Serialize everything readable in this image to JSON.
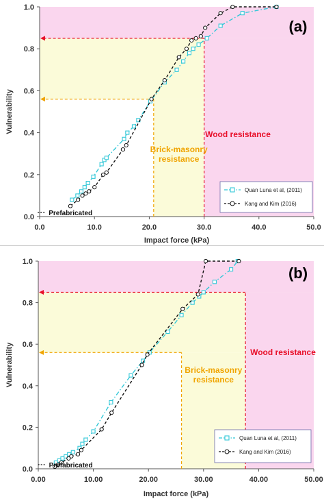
{
  "panels": [
    {
      "label": "(a)",
      "chart_data": {
        "type": "line",
        "xlabel": "Impact force (kPa)",
        "ylabel": "Vulnerability",
        "xlim": [
          0,
          50
        ],
        "ylim": [
          0,
          1
        ],
        "x_ticks": [
          "0.0",
          "10.0",
          "20.0",
          "30.0",
          "40.0",
          "50.0"
        ],
        "y_ticks": [
          "0.0",
          "0.2",
          "0.4",
          "0.6",
          "0.8",
          "1.0"
        ],
        "grid": false,
        "legend_position": "bottom-right",
        "regions": [
          {
            "label": "Brick-masonry resistance",
            "x_from": 0,
            "x_to": 20.8,
            "y_level": 0.56,
            "color": "#fbfbd9",
            "text_color": "#f0a400"
          },
          {
            "label": "Wood resistance",
            "x_from": 0,
            "x_to": 30.0,
            "y_level": 0.85,
            "color": "#fad6ee",
            "text_color": "#e8102a"
          }
        ],
        "annotations": [
          {
            "text": "Prefabricated",
            "x": 0.9,
            "y": 0.02
          }
        ],
        "series": [
          {
            "name": "Quan Luna et al, (2011)",
            "color": "#33c8d8",
            "line_style": "dash-dot",
            "marker": "square",
            "x": [
              5.9,
              6.9,
              7.6,
              8.2,
              8.8,
              9.8,
              11.3,
              11.8,
              12.2,
              15.4,
              16.0,
              17.2,
              18.0,
              20.2,
              22.8,
              25.0,
              26.2,
              27.3,
              28.0,
              29.0,
              30.5,
              33.0,
              37.0,
              43.2
            ],
            "y": [
              0.08,
              0.1,
              0.12,
              0.14,
              0.16,
              0.19,
              0.25,
              0.27,
              0.28,
              0.37,
              0.4,
              0.43,
              0.46,
              0.55,
              0.64,
              0.7,
              0.74,
              0.78,
              0.8,
              0.82,
              0.85,
              0.91,
              0.97,
              1.0
            ]
          },
          {
            "name": "Kang and Kim (2016)",
            "color": "#111111",
            "line_style": "dashed",
            "marker": "circle",
            "x": [
              5.6,
              7.0,
              7.8,
              8.4,
              9.0,
              10.0,
              11.6,
              12.2,
              15.2,
              15.8,
              20.4,
              22.8,
              25.4,
              26.8,
              27.7,
              28.5,
              29.4,
              30.2,
              33.0,
              35.2,
              43.2
            ],
            "y": [
              0.05,
              0.08,
              0.1,
              0.11,
              0.12,
              0.14,
              0.2,
              0.21,
              0.32,
              0.34,
              0.56,
              0.65,
              0.76,
              0.8,
              0.84,
              0.85,
              0.86,
              0.9,
              0.97,
              1.0,
              1.0
            ]
          }
        ]
      }
    },
    {
      "label": "(b)",
      "chart_data": {
        "type": "line",
        "xlabel": "Impact force (kPa)",
        "ylabel": "Vulnerability",
        "xlim": [
          0,
          50
        ],
        "ylim": [
          0,
          1
        ],
        "x_ticks": [
          "0.00",
          "10.00",
          "20.00",
          "30.00",
          "40.00",
          "50.00"
        ],
        "y_ticks": [
          "0.0",
          "0.2",
          "0.4",
          "0.6",
          "0.8",
          "1.0"
        ],
        "grid": false,
        "legend_position": "bottom-right",
        "regions": [
          {
            "label": "Brick-masonry resistance",
            "x_from": 0,
            "x_to": 26.0,
            "y_level": 0.56,
            "color": "#fbfbd9",
            "text_color": "#f0a400"
          },
          {
            "label": "Wood resistance",
            "x_from": 0,
            "x_to": 37.6,
            "y_level": 0.85,
            "color": "#fad6ee",
            "text_color": "#e8102a"
          }
        ],
        "annotations": [
          {
            "text": "Prefabricated",
            "x": 1.2,
            "y": 0.02
          }
        ],
        "series": [
          {
            "name": "Quan Luna et al, (2011)",
            "color": "#33c8d8",
            "line_style": "dash-dot",
            "marker": "square",
            "x": [
              3.2,
              3.8,
              4.4,
              5.0,
              5.6,
              6.3,
              7.5,
              8.0,
              8.6,
              10.0,
              13.2,
              16.8,
              19.0,
              20.2,
              23.5,
              26.0,
              28.0,
              29.2,
              30.0,
              32.0,
              35.0,
              36.2
            ],
            "y": [
              0.03,
              0.04,
              0.05,
              0.06,
              0.07,
              0.08,
              0.1,
              0.12,
              0.14,
              0.18,
              0.32,
              0.45,
              0.52,
              0.56,
              0.66,
              0.74,
              0.8,
              0.83,
              0.85,
              0.9,
              0.96,
              1.0
            ]
          },
          {
            "name": "Kang and Kim (2016)",
            "color": "#111111",
            "line_style": "dashed",
            "marker": "circle",
            "x": [
              3.0,
              3.6,
              4.2,
              5.5,
              6.0,
              7.2,
              7.8,
              11.5,
              13.3,
              18.8,
              19.8,
              26.2,
              29.0,
              30.4,
              36.4
            ],
            "y": [
              0.01,
              0.02,
              0.03,
              0.05,
              0.06,
              0.07,
              0.09,
              0.19,
              0.27,
              0.5,
              0.55,
              0.77,
              0.84,
              1.0,
              1.0
            ]
          }
        ]
      }
    }
  ]
}
